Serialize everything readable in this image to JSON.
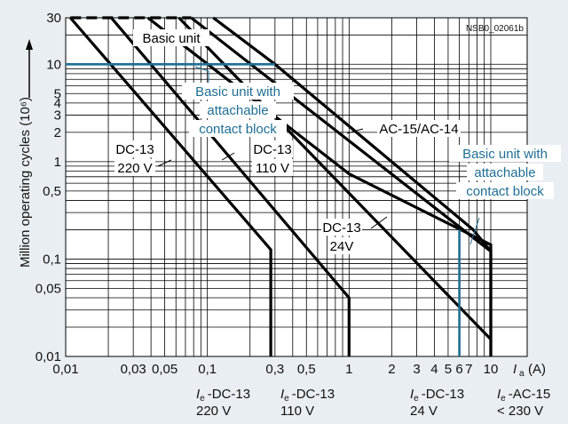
{
  "chart_data": {
    "type": "line",
    "x_scale": "log",
    "y_scale": "log",
    "xlim": [
      0.01,
      20
    ],
    "ylim": [
      0.01,
      30
    ],
    "grid": true,
    "figure_id": "NSB0_02061b",
    "ylabel": "Million operating cycles (10⁶)",
    "xlabel_symbol": "I",
    "xlabel_sub": "a",
    "xlabel_unit": "(A)",
    "x_ticks": [
      {
        "value": 0.01,
        "label": "0,01"
      },
      {
        "value": 0.03,
        "label": "0,03"
      },
      {
        "value": 0.05,
        "label": "0,05"
      },
      {
        "value": 0.1,
        "label": "0,1"
      },
      {
        "value": 0.3,
        "label": "0,3"
      },
      {
        "value": 0.5,
        "label": "0,5"
      },
      {
        "value": 1,
        "label": "1"
      },
      {
        "value": 2,
        "label": "2"
      },
      {
        "value": 3,
        "label": "3"
      },
      {
        "value": 4,
        "label": "4"
      },
      {
        "value": 5,
        "label": "5"
      },
      {
        "value": 6,
        "label": "6"
      },
      {
        "value": 7,
        "label": "7"
      },
      {
        "value": 10,
        "label": "10"
      }
    ],
    "y_ticks": [
      {
        "value": 0.01,
        "label": "0,01"
      },
      {
        "value": 0.05,
        "label": "0,05"
      },
      {
        "value": 0.1,
        "label": "0,1"
      },
      {
        "value": 0.5,
        "label": "0,5"
      },
      {
        "value": 1,
        "label": "1"
      },
      {
        "value": 2,
        "label": "2"
      },
      {
        "value": 3,
        "label": "3"
      },
      {
        "value": 4,
        "label": "4"
      },
      {
        "value": 5,
        "label": "5"
      },
      {
        "value": 10,
        "label": "10"
      },
      {
        "value": 30,
        "label": "30"
      }
    ],
    "series": [
      {
        "name": "DC-13 220 V",
        "color": "#000000",
        "dash": false,
        "x": [
          0.0108,
          0.28,
          0.28
        ],
        "y": [
          30,
          0.125,
          0.01
        ]
      },
      {
        "name": "DC-13 110 V",
        "color": "#000000",
        "dash": false,
        "x": [
          0.021,
          1.0,
          1.0
        ],
        "y": [
          30,
          0.04,
          0.01
        ]
      },
      {
        "name": "DC-13 24V",
        "color": "#000000",
        "dash": false,
        "x": [
          0.038,
          1.0,
          10,
          10
        ],
        "y": [
          30,
          0.75,
          0.14,
          0.01
        ]
      },
      {
        "name": "AC-15/AC-14",
        "color": "#000000",
        "dash": false,
        "x": [
          0.063,
          10
        ],
        "y": [
          30,
          0.015
        ]
      },
      {
        "name": "",
        "color": "#000000",
        "dash": false,
        "x": [
          0.077,
          10,
          10
        ],
        "y": [
          30,
          0.12,
          0.01
        ]
      },
      {
        "name": "",
        "color": "#000000",
        "dash": false,
        "x": [
          0.11,
          0.3,
          7.5,
          10
        ],
        "y": [
          30,
          10,
          0.2,
          0.12
        ]
      },
      {
        "name": "Basic unit",
        "color": "#000000",
        "dash": true,
        "x": [
          0.0108,
          0.077
        ],
        "y": [
          30,
          30
        ]
      },
      {
        "name": "Basic unit with attachable contact block",
        "color": "#1f6e94",
        "dash": false,
        "x": [
          0.01,
          0.3
        ],
        "y": [
          10,
          10
        ]
      },
      {
        "name": "Basic unit with attachable contact block",
        "color": "#1f6e94",
        "dash": false,
        "x": [
          6,
          6
        ],
        "y": [
          0.2,
          0.01
        ]
      }
    ],
    "annotations": [
      {
        "lines": [
          "Basic unit"
        ],
        "color": "#000000"
      },
      {
        "lines": [
          "Basic unit with",
          "attachable",
          "contact block"
        ],
        "color": "#1f6e94"
      },
      {
        "lines": [
          "AC-15/AC-14"
        ],
        "color": "#000000"
      },
      {
        "lines": [
          "DC-13",
          "220 V"
        ],
        "color": "#000000"
      },
      {
        "lines": [
          "DC-13",
          "110 V"
        ],
        "color": "#000000"
      },
      {
        "lines": [
          "DC-13",
          "24V"
        ],
        "color": "#000000"
      },
      {
        "lines": [
          "Basic unit with",
          "attachable",
          "contact block"
        ],
        "color": "#1f6e94"
      }
    ],
    "bottom_labels": [
      {
        "symbol": "I",
        "sub": "e",
        "lines": [
          "-DC-13",
          "220 V"
        ]
      },
      {
        "symbol": "I",
        "sub": "e",
        "lines": [
          "-DC-13",
          "110 V"
        ]
      },
      {
        "symbol": "I",
        "sub": "e",
        "lines": [
          "-DC-13",
          "24 V"
        ]
      },
      {
        "symbol": "I",
        "sub": "e",
        "lines": [
          "-AC-15",
          "< 230 V"
        ]
      }
    ],
    "colors": {
      "background": "#e9eef2",
      "plot": "#ffffff",
      "ink": "#000000",
      "accent": "#1f6e94"
    }
  }
}
